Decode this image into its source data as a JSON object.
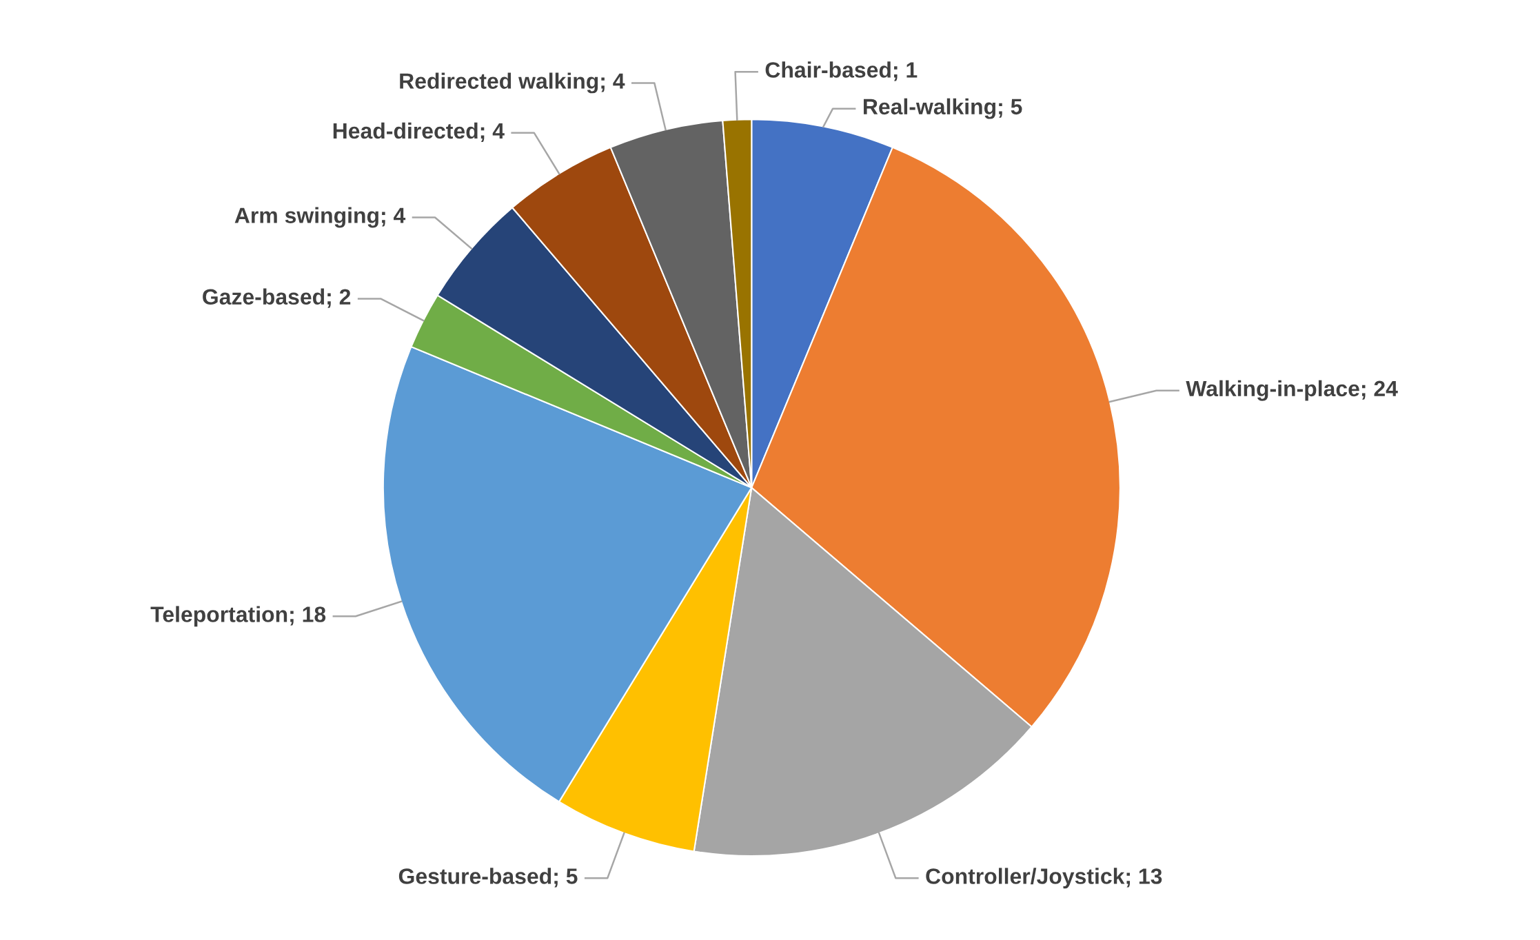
{
  "chart_data": {
    "type": "pie",
    "categories": [
      "Real-walking; 5",
      "Walking-in-place; 24",
      "Controller/Joystick; 13",
      "Gesture-based; 5",
      "Teleportation; 18",
      "Gaze-based; 2",
      "Arm swinging; 4",
      "Head-directed; 4",
      "Redirected walking; 4",
      "Chair-based; 1"
    ],
    "values": [
      5,
      24,
      13,
      5,
      18,
      2,
      4,
      4,
      4,
      1
    ],
    "colors": [
      "#4472c4",
      "#ed7d31",
      "#a5a5a5",
      "#ffc000",
      "#5b9bd5",
      "#70ad47",
      "#264478",
      "#9e480e",
      "#636363",
      "#997300"
    ]
  }
}
